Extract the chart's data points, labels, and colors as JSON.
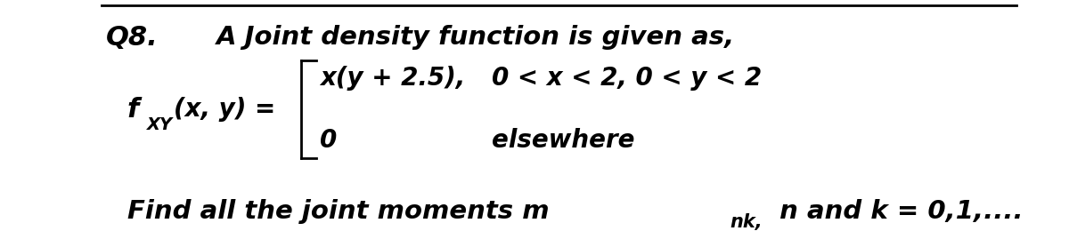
{
  "background_color": "#ffffff",
  "q8_label": "Q8.",
  "title_text": "A Joint density function is given as,",
  "case1_expr": "x(y + 2.5),",
  "case1_cond": "0 < x < 2, 0 < y < 2",
  "case2_expr": "0",
  "case2_cond": "elsewhere",
  "find_text1": "Find all the joint moments m",
  "find_sub": "nk,",
  "find_text2": " n and k = 0,1,....",
  "font_size_q8": 22,
  "font_size_title": 21,
  "font_size_body": 20,
  "font_size_sub": 14,
  "font_size_find": 21,
  "text_color": "#000000",
  "fig_width": 12.0,
  "fig_height": 2.78
}
